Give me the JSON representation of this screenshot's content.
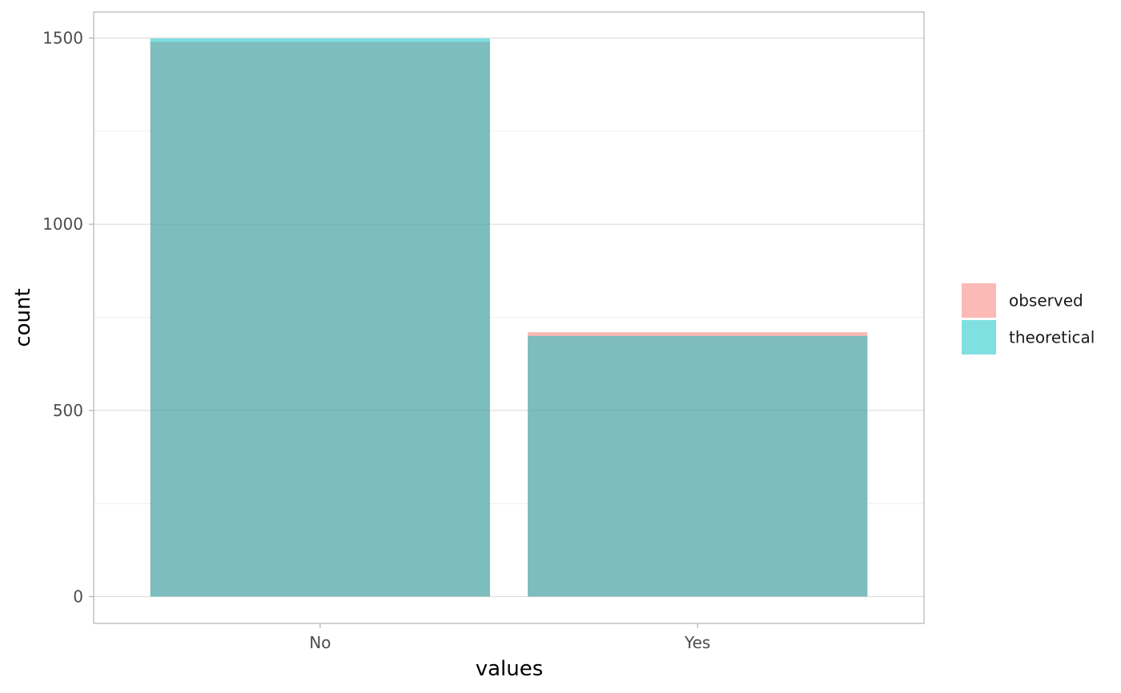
{
  "chart_data": {
    "type": "bar",
    "categories": [
      "No",
      "Yes"
    ],
    "series": [
      {
        "name": "observed",
        "color": "#F8766D",
        "values": [
          1490,
          710
        ]
      },
      {
        "name": "theoretical",
        "color": "#00BFC4",
        "values": [
          1499,
          700
        ]
      }
    ],
    "bar_opacity": 0.5,
    "overlay": "identity",
    "xlabel": "values",
    "ylabel": "count",
    "ylim": [
      -72,
      1570
    ],
    "yticks": [
      0,
      500,
      1000,
      1500
    ],
    "yticks_minor": [
      250,
      750,
      1250
    ],
    "grid": true,
    "legend_position": "right"
  }
}
